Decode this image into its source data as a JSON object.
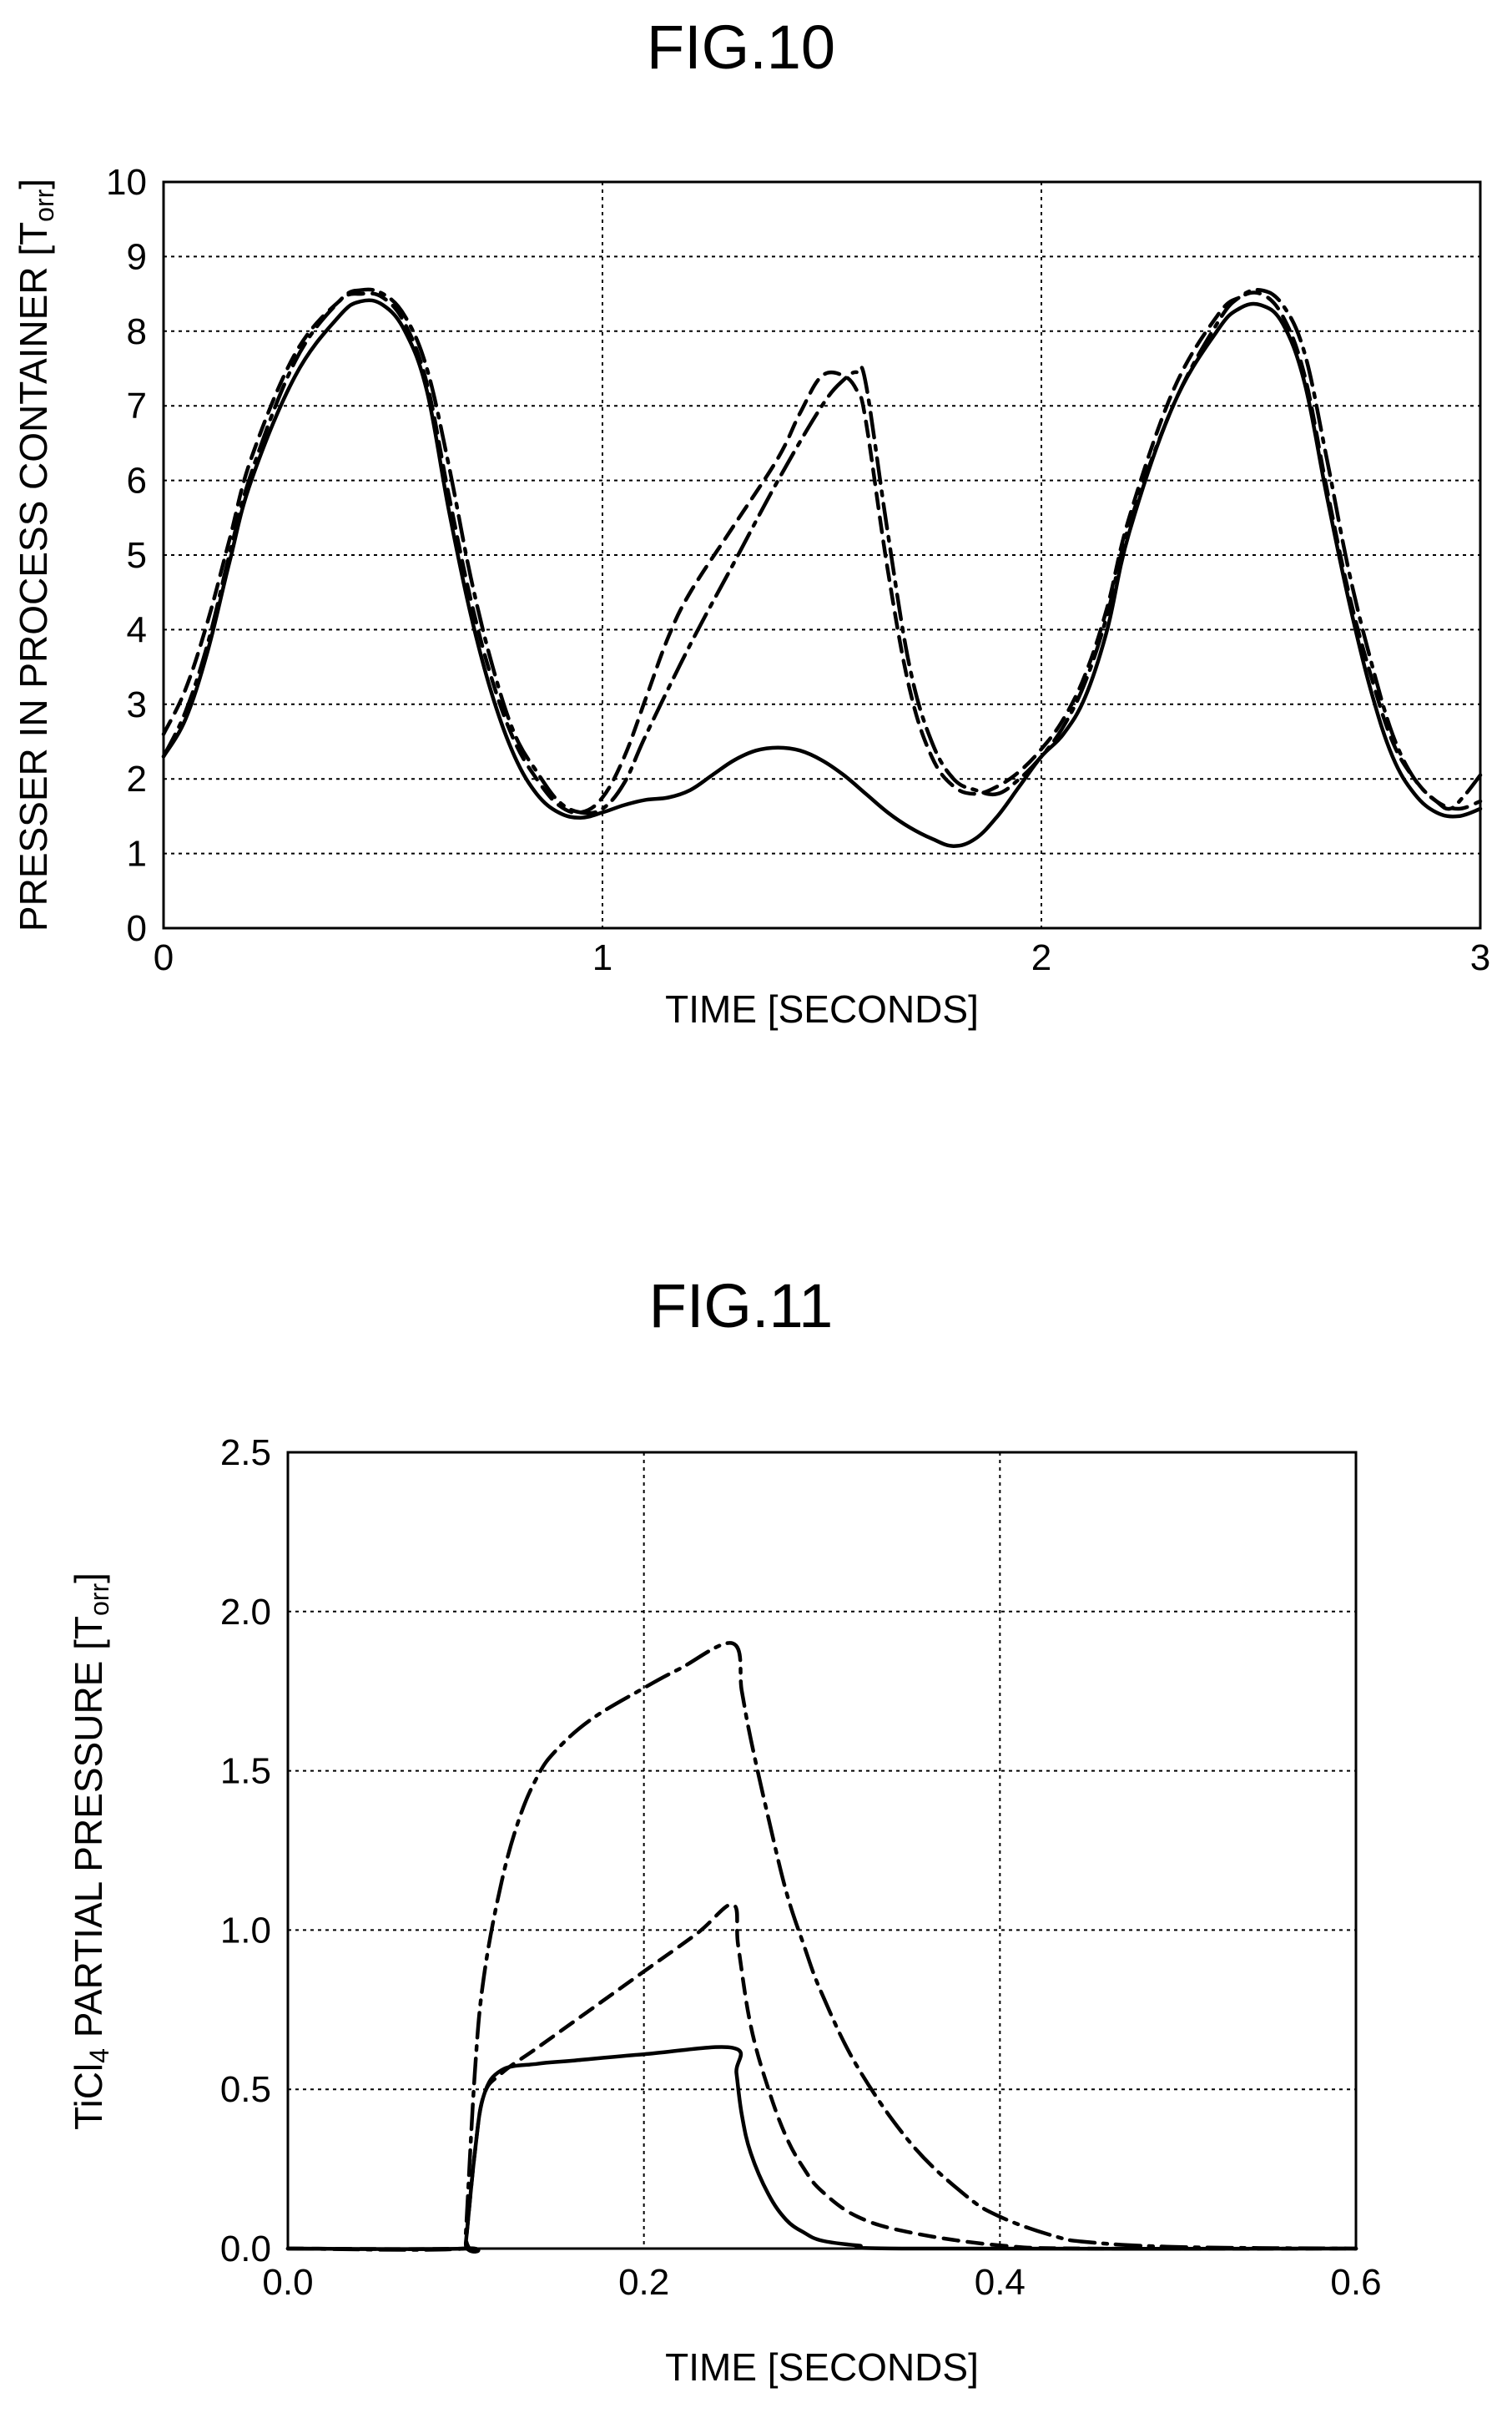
{
  "chart_data": [
    {
      "type": "line",
      "title": "FIG.10",
      "xlabel": "TIME [SECONDS]",
      "ylabel": "PRESSER IN PROCESS CONTAINER [Torr]",
      "ylabel_main": "PRESSER IN PROCESS CONTAINER [T",
      "ylabel_sub": "orr",
      "ylabel_close": "]",
      "xlim": [
        0,
        3
      ],
      "ylim": [
        0,
        10
      ],
      "xticks": [
        0,
        1,
        2,
        3
      ],
      "yticks": [
        0,
        1,
        2,
        3,
        4,
        5,
        6,
        7,
        8,
        9,
        10
      ],
      "grid": true,
      "series": [
        {
          "style": "solid",
          "x": [
            0,
            0.05,
            0.1,
            0.15,
            0.2,
            0.3,
            0.4,
            0.45,
            0.5,
            0.55,
            0.6,
            0.65,
            0.7,
            0.75,
            0.8,
            0.85,
            0.9,
            0.95,
            1.0,
            1.05,
            1.1,
            1.15,
            1.2,
            1.25,
            1.3,
            1.35,
            1.4,
            1.45,
            1.5,
            1.55,
            1.6,
            1.65,
            1.7,
            1.75,
            1.8,
            1.85,
            1.9,
            1.95,
            2.0,
            2.05,
            2.1,
            2.15,
            2.2,
            2.3,
            2.4,
            2.45,
            2.5,
            2.55,
            2.6,
            2.65,
            2.7,
            2.75,
            2.8,
            2.85,
            2.9,
            2.95,
            3.0
          ],
          "y": [
            2.3,
            2.8,
            3.7,
            4.9,
            6.0,
            7.4,
            8.2,
            8.4,
            8.35,
            8.0,
            7.2,
            5.6,
            4.2,
            3.1,
            2.3,
            1.8,
            1.55,
            1.48,
            1.55,
            1.65,
            1.72,
            1.75,
            1.85,
            2.05,
            2.25,
            2.38,
            2.42,
            2.38,
            2.25,
            2.05,
            1.8,
            1.55,
            1.35,
            1.2,
            1.1,
            1.2,
            1.5,
            1.9,
            2.3,
            2.6,
            3.1,
            4.0,
            5.3,
            7.0,
            8.0,
            8.3,
            8.35,
            8.1,
            7.3,
            5.8,
            4.4,
            3.2,
            2.3,
            1.8,
            1.55,
            1.5,
            1.6
          ]
        },
        {
          "style": "dashed",
          "x": [
            0,
            0.05,
            0.1,
            0.15,
            0.2,
            0.3,
            0.4,
            0.45,
            0.5,
            0.55,
            0.6,
            0.65,
            0.7,
            0.75,
            0.8,
            0.85,
            0.9,
            0.95,
            1.0,
            1.05,
            1.1,
            1.15,
            1.2,
            1.3,
            1.4,
            1.45,
            1.5,
            1.55,
            1.58,
            1.6,
            1.65,
            1.7,
            1.75,
            1.8,
            1.85,
            1.9,
            1.95,
            2.0,
            2.05,
            2.1,
            2.15,
            2.2,
            2.3,
            2.4,
            2.45,
            2.5,
            2.55,
            2.6,
            2.65,
            2.7,
            2.75,
            2.8,
            2.85,
            2.9,
            2.95,
            3.0
          ],
          "y": [
            2.6,
            3.2,
            4.1,
            5.2,
            6.3,
            7.7,
            8.4,
            8.5,
            8.45,
            8.1,
            7.3,
            5.8,
            4.4,
            3.3,
            2.5,
            2.0,
            1.65,
            1.55,
            1.75,
            2.3,
            3.1,
            3.9,
            4.5,
            5.4,
            6.3,
            6.9,
            7.4,
            7.4,
            7.2,
            6.8,
            4.8,
            3.2,
            2.3,
            1.9,
            1.8,
            1.9,
            2.1,
            2.4,
            2.8,
            3.4,
            4.3,
            5.5,
            7.2,
            8.2,
            8.45,
            8.5,
            8.2,
            7.4,
            5.9,
            4.5,
            3.4,
            2.5,
            2.0,
            1.7,
            1.6,
            1.7
          ]
        },
        {
          "style": "dash-dot",
          "x": [
            0,
            0.05,
            0.1,
            0.15,
            0.2,
            0.3,
            0.4,
            0.45,
            0.5,
            0.55,
            0.6,
            0.65,
            0.7,
            0.75,
            0.8,
            0.85,
            0.9,
            0.95,
            1.0,
            1.05,
            1.1,
            1.2,
            1.3,
            1.4,
            1.5,
            1.55,
            1.58,
            1.6,
            1.65,
            1.7,
            1.75,
            1.8,
            1.85,
            1.9,
            1.95,
            2.0,
            2.05,
            2.1,
            2.15,
            2.2,
            2.3,
            2.4,
            2.45,
            2.5,
            2.55,
            2.6,
            2.65,
            2.7,
            2.75,
            2.8,
            2.85,
            2.9,
            2.93,
            2.96,
            3.0
          ],
          "y": [
            2.3,
            2.9,
            3.8,
            5.0,
            6.1,
            7.6,
            8.4,
            8.55,
            8.5,
            8.2,
            7.5,
            6.2,
            4.7,
            3.5,
            2.6,
            2.1,
            1.7,
            1.55,
            1.6,
            1.95,
            2.6,
            3.8,
            4.9,
            6.0,
            7.0,
            7.35,
            7.45,
            7.3,
            5.3,
            3.5,
            2.5,
            2.0,
            1.85,
            1.8,
            2.0,
            2.3,
            2.7,
            3.3,
            4.2,
            5.4,
            7.0,
            8.1,
            8.45,
            8.55,
            8.35,
            7.7,
            6.3,
            4.8,
            3.6,
            2.6,
            2.0,
            1.7,
            1.6,
            1.75,
            2.05
          ]
        }
      ]
    },
    {
      "type": "line",
      "title": "FIG.11",
      "xlabel": "TIME [SECONDS]",
      "ylabel": "TiCl4 PARTIAL PRESSURE [Torr]",
      "ylabel_a": "TiCl",
      "ylabel_sub": "4",
      "ylabel_b": " PARTIAL PRESSURE [T",
      "ylabel_sub2": "orr",
      "ylabel_close": "]",
      "xlim": [
        0.0,
        0.6
      ],
      "ylim": [
        0.0,
        2.5
      ],
      "xticks": [
        "0.0",
        "0.2",
        "0.4",
        "0.6"
      ],
      "yticks": [
        "0.0",
        "0.5",
        "1.0",
        "1.5",
        "2.0",
        "2.5"
      ],
      "grid": true,
      "series": [
        {
          "style": "solid",
          "x": [
            0,
            0.099,
            0.1,
            0.105,
            0.11,
            0.12,
            0.14,
            0.16,
            0.2,
            0.25,
            0.252,
            0.255,
            0.26,
            0.27,
            0.28,
            0.29,
            0.3,
            0.32,
            0.35,
            0.6
          ],
          "y": [
            0,
            0,
            0.02,
            0.3,
            0.48,
            0.56,
            0.58,
            0.59,
            0.61,
            0.63,
            0.55,
            0.42,
            0.3,
            0.17,
            0.09,
            0.05,
            0.025,
            0.01,
            0,
            0
          ]
        },
        {
          "style": "dashed",
          "x": [
            0,
            0.099,
            0.1,
            0.105,
            0.11,
            0.12,
            0.14,
            0.17,
            0.2,
            0.23,
            0.25,
            0.253,
            0.26,
            0.27,
            0.28,
            0.29,
            0.3,
            0.32,
            0.35,
            0.4,
            0.45,
            0.6
          ],
          "y": [
            0,
            0,
            0.02,
            0.3,
            0.48,
            0.55,
            0.63,
            0.75,
            0.87,
            0.99,
            1.08,
            0.95,
            0.7,
            0.5,
            0.35,
            0.25,
            0.18,
            0.1,
            0.05,
            0.01,
            0,
            0
          ]
        },
        {
          "style": "dash-dot",
          "x": [
            0,
            0.099,
            0.1,
            0.105,
            0.11,
            0.12,
            0.13,
            0.14,
            0.15,
            0.17,
            0.2,
            0.22,
            0.25,
            0.255,
            0.26,
            0.27,
            0.28,
            0.29,
            0.3,
            0.32,
            0.35,
            0.38,
            0.4,
            0.43,
            0.45,
            0.5,
            0.6
          ],
          "y": [
            0,
            0,
            0.05,
            0.55,
            0.85,
            1.15,
            1.35,
            1.48,
            1.56,
            1.66,
            1.76,
            1.82,
            1.9,
            1.75,
            1.6,
            1.35,
            1.12,
            0.95,
            0.8,
            0.57,
            0.33,
            0.17,
            0.1,
            0.04,
            0.02,
            0.005,
            0
          ]
        }
      ]
    }
  ]
}
